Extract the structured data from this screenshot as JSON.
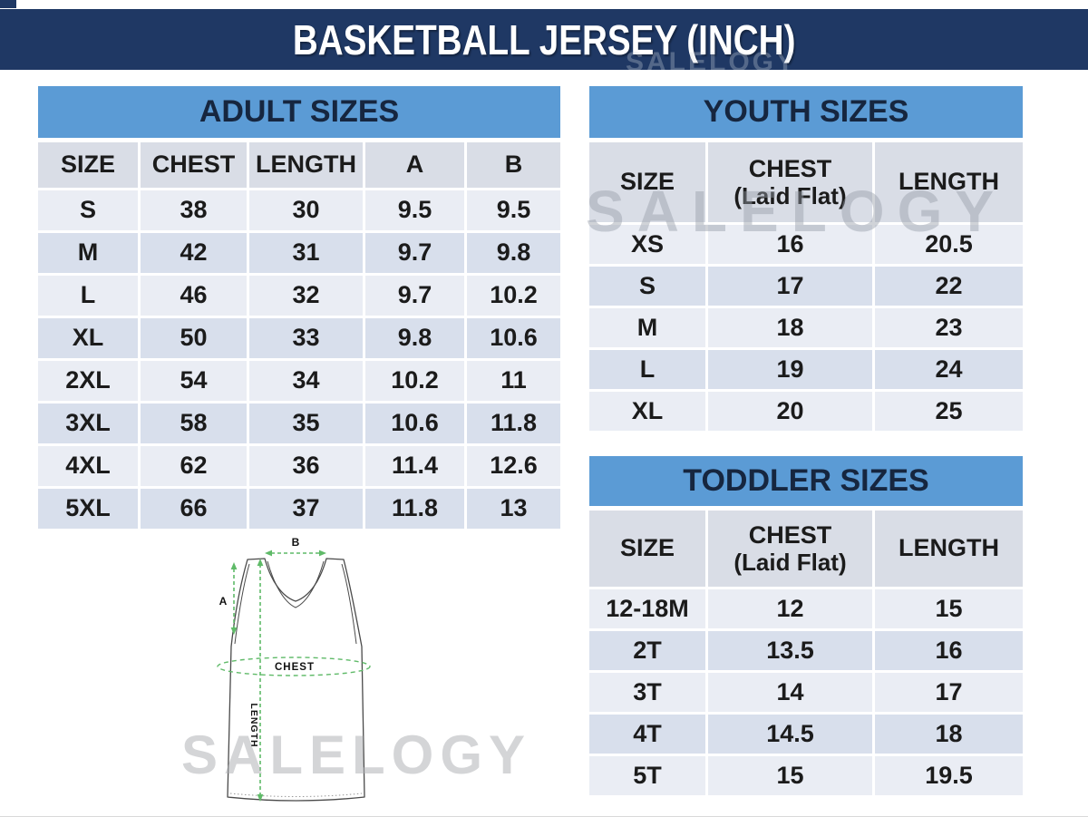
{
  "page": {
    "title": "BASKETBALL JERSEY (INCH)",
    "watermark": "SALELOGY",
    "unit": "INCH"
  },
  "colors": {
    "title_bar_navy": "#1F3864",
    "band_blue": "#5B9BD5",
    "header_row_bg": "#D9DDE6",
    "row_light": "#EAEDF4",
    "row_dark": "#D8DFEC",
    "measure_green": "#5FBA68",
    "watermark_gray": "#B9BEC6"
  },
  "tables": {
    "adult": {
      "title": "ADULT SIZES",
      "columns": [
        "SIZE",
        "CHEST",
        "LENGTH",
        "A",
        "B"
      ],
      "rows": [
        [
          "S",
          "38",
          "30",
          "9.5",
          "9.5"
        ],
        [
          "M",
          "42",
          "31",
          "9.7",
          "9.8"
        ],
        [
          "L",
          "46",
          "32",
          "9.7",
          "10.2"
        ],
        [
          "XL",
          "50",
          "33",
          "9.8",
          "10.6"
        ],
        [
          "2XL",
          "54",
          "34",
          "10.2",
          "11"
        ],
        [
          "3XL",
          "58",
          "35",
          "10.6",
          "11.8"
        ],
        [
          "4XL",
          "62",
          "36",
          "11.4",
          "12.6"
        ],
        [
          "5XL",
          "66",
          "37",
          "11.8",
          "13"
        ]
      ]
    },
    "youth": {
      "title": "YOUTH SIZES",
      "columns": [
        {
          "label": "SIZE",
          "sub": ""
        },
        {
          "label": "CHEST",
          "sub": "(Laid Flat)"
        },
        {
          "label": "LENGTH",
          "sub": ""
        }
      ],
      "rows": [
        [
          "XS",
          "16",
          "20.5"
        ],
        [
          "S",
          "17",
          "22"
        ],
        [
          "M",
          "18",
          "23"
        ],
        [
          "L",
          "19",
          "24"
        ],
        [
          "XL",
          "20",
          "25"
        ]
      ]
    },
    "toddler": {
      "title": "TODDLER SIZES",
      "columns": [
        {
          "label": "SIZE",
          "sub": ""
        },
        {
          "label": "CHEST",
          "sub": "(Laid Flat)"
        },
        {
          "label": "LENGTH",
          "sub": ""
        }
      ],
      "rows": [
        [
          "12-18M",
          "12",
          "15"
        ],
        [
          "2T",
          "13.5",
          "16"
        ],
        [
          "3T",
          "14",
          "17"
        ],
        [
          "4T",
          "14.5",
          "18"
        ],
        [
          "5T",
          "15",
          "19.5"
        ]
      ]
    }
  },
  "diagram": {
    "label_a": "A",
    "label_b": "B",
    "label_chest": "CHEST",
    "label_length": "LENGTH"
  }
}
